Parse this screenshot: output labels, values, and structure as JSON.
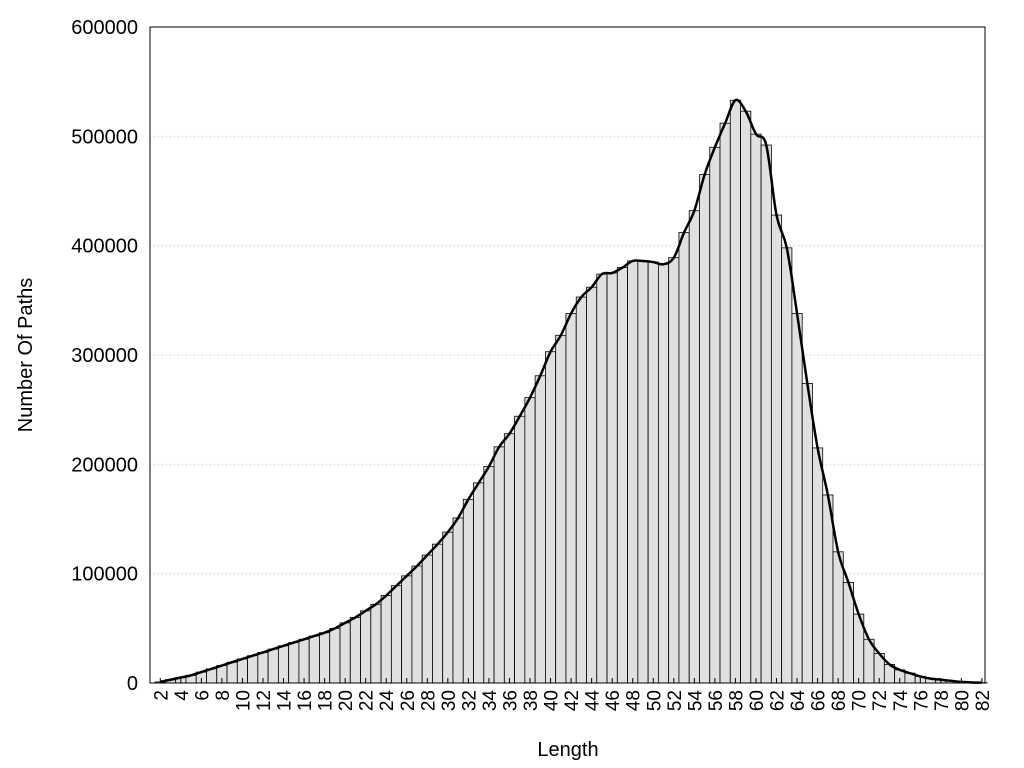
{
  "chart_data": {
    "type": "bar",
    "x_label": "Length",
    "y_label": "Number Of Paths",
    "x": [
      2,
      3,
      4,
      5,
      6,
      7,
      8,
      9,
      10,
      11,
      12,
      13,
      14,
      15,
      16,
      17,
      18,
      19,
      20,
      21,
      22,
      23,
      24,
      25,
      26,
      27,
      28,
      29,
      30,
      31,
      32,
      33,
      34,
      35,
      36,
      37,
      38,
      39,
      40,
      41,
      42,
      43,
      44,
      45,
      46,
      47,
      48,
      49,
      50,
      51,
      52,
      53,
      54,
      55,
      56,
      57,
      58,
      59,
      60,
      61,
      62,
      63,
      64,
      65,
      66,
      67,
      68,
      69,
      70,
      71,
      72,
      73,
      74,
      75,
      76,
      77,
      78,
      79,
      80,
      81,
      82
    ],
    "values": [
      1000,
      3000,
      5000,
      7000,
      10000,
      13000,
      16000,
      19000,
      22000,
      25000,
      28000,
      31000,
      34000,
      37000,
      40000,
      43000,
      46000,
      50000,
      55000,
      60000,
      66000,
      72000,
      80000,
      89000,
      98000,
      107000,
      117000,
      127000,
      138000,
      151000,
      168000,
      183000,
      198000,
      216000,
      228000,
      244000,
      261000,
      281000,
      303000,
      318000,
      338000,
      353000,
      362000,
      374000,
      375000,
      380000,
      386000,
      386000,
      385000,
      383000,
      389000,
      412000,
      432000,
      465000,
      490000,
      512000,
      533000,
      523000,
      502000,
      492000,
      428000,
      398000,
      338000,
      274000,
      215000,
      172000,
      120000,
      92000,
      63000,
      40000,
      27000,
      17000,
      12000,
      9000,
      6000,
      4000,
      3000,
      2000,
      1000,
      500,
      300
    ],
    "color": "#e0e0e0",
    "line_color": "#000000",
    "xlim": [
      1,
      82.3
    ],
    "xticks": [
      2,
      4,
      6,
      8,
      10,
      12,
      14,
      16,
      18,
      20,
      22,
      24,
      26,
      28,
      30,
      32,
      34,
      36,
      38,
      40,
      42,
      44,
      46,
      48,
      50,
      52,
      54,
      56,
      58,
      60,
      62,
      64,
      66,
      68,
      70,
      72,
      74,
      76,
      78,
      80,
      82
    ],
    "ylim": [
      0,
      600000
    ],
    "yticks": [
      0,
      100000,
      200000,
      300000,
      400000,
      500000,
      600000
    ],
    "grid": true
  }
}
